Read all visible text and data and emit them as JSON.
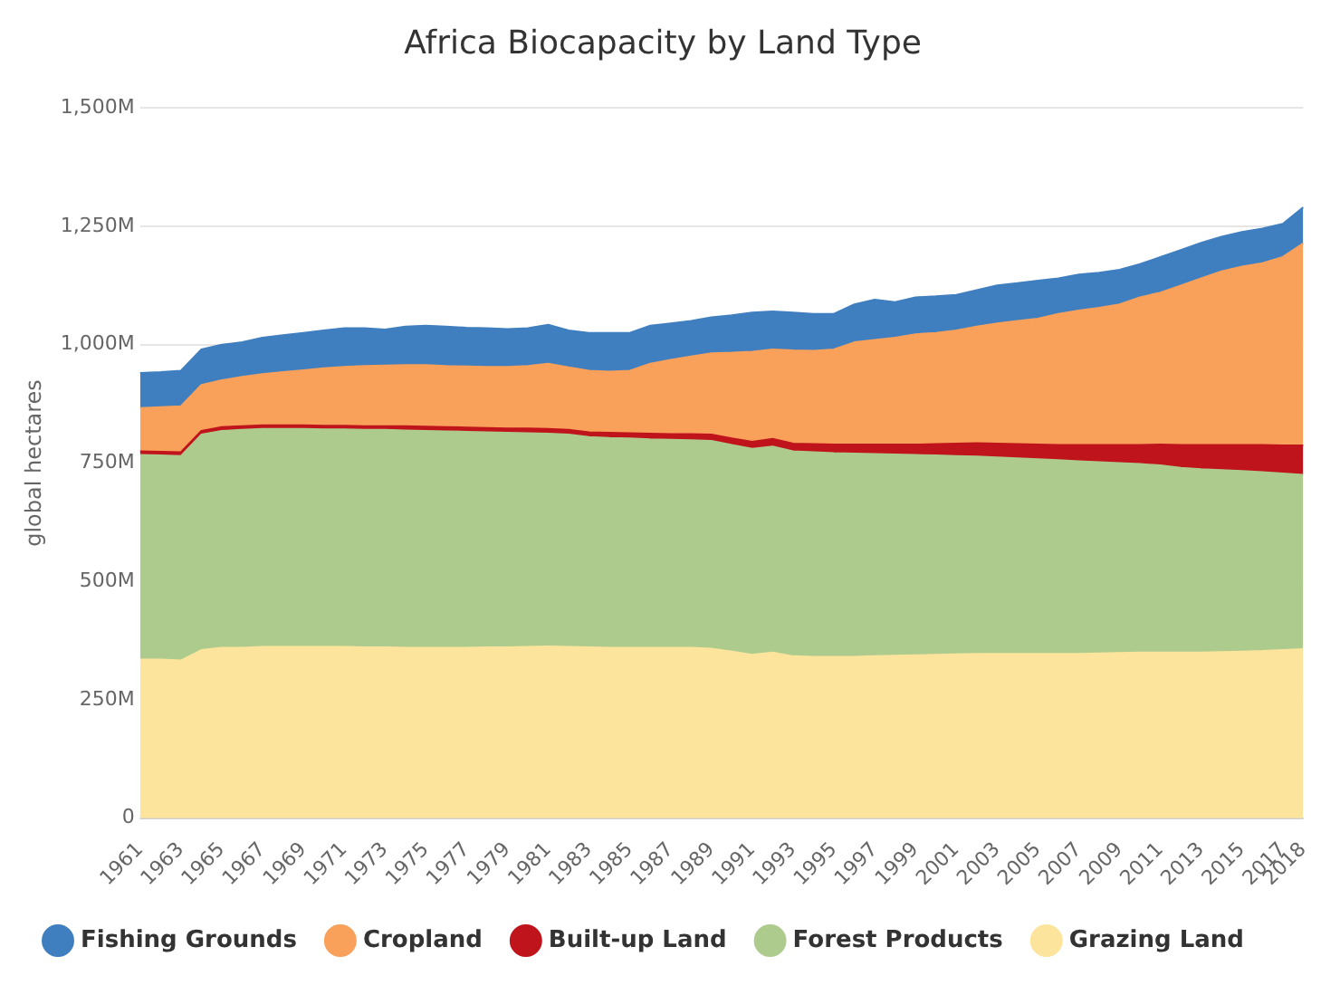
{
  "chart_data": {
    "type": "area",
    "title": "Africa Biocapacity by Land Type",
    "ylabel": "global hectares",
    "categories": [
      "1961",
      null,
      "1963",
      null,
      "1965",
      null,
      "1967",
      null,
      "1969",
      null,
      "1971",
      null,
      "1973",
      null,
      "1975",
      null,
      "1977",
      null,
      "1979",
      null,
      "1981",
      null,
      "1983",
      null,
      "1985",
      null,
      "1987",
      null,
      "1989",
      null,
      "1991",
      null,
      "1993",
      null,
      "1995",
      null,
      "1997",
      null,
      "1999",
      null,
      "2001",
      null,
      "2003",
      null,
      "2005",
      null,
      "2007",
      null,
      "2009",
      null,
      "2011",
      null,
      "2013",
      null,
      "2015",
      null,
      "2017",
      "2018"
    ],
    "stacked": true,
    "ylim": [
      0,
      1500
    ],
    "yticks": [
      0,
      {
        "value": 250,
        "label": "250M"
      },
      {
        "value": 500,
        "label": "500M"
      },
      {
        "value": 750,
        "label": "750M"
      },
      {
        "value": 1000,
        "label": "1,000M"
      },
      {
        "value": 1250,
        "label": "1,250M"
      },
      {
        "value": 1500,
        "label": "1,500M"
      }
    ],
    "grid": "y",
    "legend": "bottom",
    "marker": "none",
    "series": [
      {
        "name": "Grazing Land",
        "color": "#fde49c",
        "values": [
          335,
          335,
          333,
          355,
          360,
          360,
          362,
          362,
          362,
          362,
          362,
          361,
          361,
          360,
          360,
          360,
          360,
          361,
          361,
          362,
          363,
          362,
          361,
          360,
          360,
          360,
          360,
          360,
          358,
          352,
          345,
          350,
          342,
          341,
          341,
          341,
          342,
          343,
          344,
          345,
          346,
          347,
          347,
          347,
          347,
          347,
          347,
          348,
          349,
          350,
          350,
          350,
          350,
          351,
          352,
          353,
          355,
          357
        ]
      },
      {
        "name": "Forest Products",
        "color": "#aecb8e",
        "values": [
          432,
          431,
          432,
          455,
          458,
          460,
          460,
          460,
          460,
          459,
          459,
          459,
          459,
          459,
          458,
          457,
          456,
          454,
          453,
          451,
          449,
          448,
          444,
          443,
          442,
          440,
          439,
          438,
          439,
          436,
          435,
          435,
          433,
          432,
          430,
          429,
          427,
          425,
          423,
          421,
          419,
          417,
          415,
          413,
          411,
          409,
          407,
          404,
          401,
          398,
          395,
          390,
          387,
          384,
          381,
          378,
          373,
          368
        ]
      },
      {
        "name": "Built-up Land",
        "color": "#c0141c",
        "values": [
          8,
          8,
          8,
          8,
          8,
          8,
          8,
          8,
          8,
          8,
          8,
          8,
          8,
          9,
          9,
          9,
          9,
          9,
          9,
          10,
          10,
          10,
          10,
          11,
          11,
          12,
          12,
          13,
          13,
          14,
          15,
          16,
          16,
          17,
          18,
          19,
          20,
          21,
          22,
          24,
          26,
          28,
          29,
          30,
          31,
          32,
          34,
          36,
          38,
          40,
          44,
          48,
          51,
          53,
          55,
          57,
          59,
          62
        ]
      },
      {
        "name": "Cropland",
        "color": "#f9a05a",
        "values": [
          91,
          94,
          97,
          97,
          99,
          104,
          108,
          112,
          116,
          121,
          124,
          127,
          128,
          129,
          130,
          129,
          129,
          129,
          130,
          132,
          138,
          132,
          130,
          129,
          132,
          148,
          157,
          164,
          172,
          181,
          190,
          189,
          197,
          197,
          201,
          216,
          221,
          226,
          233,
          235,
          239,
          246,
          254,
          260,
          266,
          277,
          284,
          290,
          297,
          312,
          321,
          337,
          352,
          367,
          377,
          384,
          398,
          427
        ]
      },
      {
        "name": "Fishing Grounds",
        "color": "#3f7fc0",
        "values": [
          74,
          74,
          75,
          75,
          75,
          73,
          77,
          78,
          79,
          80,
          82,
          80,
          76,
          81,
          83,
          83,
          82,
          82,
          80,
          80,
          82,
          78,
          80,
          82,
          80,
          80,
          77,
          75,
          76,
          79,
          83,
          80,
          80,
          78,
          75,
          80,
          85,
          75,
          78,
          77,
          75,
          77,
          80,
          80,
          80,
          75,
          76,
          74,
          73,
          70,
          75,
          75,
          75,
          73,
          73,
          73,
          70,
          76
        ]
      }
    ]
  }
}
